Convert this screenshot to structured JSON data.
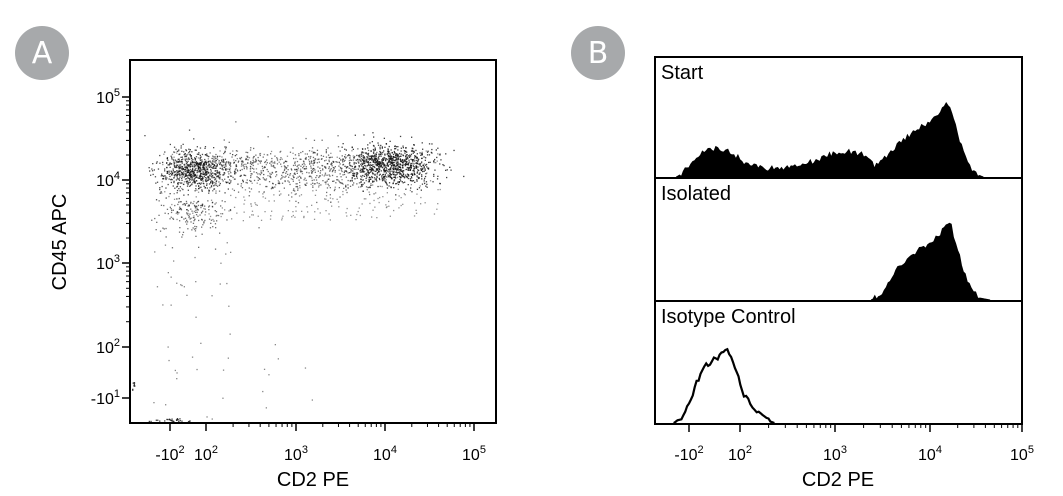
{
  "panels": [
    {
      "label": "A"
    },
    {
      "label": "B"
    }
  ],
  "chart_data": [
    {
      "type": "scatter",
      "panel": "A",
      "xlabel": "CD2 PE",
      "ylabel": "CD45 APC",
      "x_ticks": [
        {
          "v": -100,
          "lbl": "-10",
          "sup": "2"
        },
        {
          "v": 100,
          "lbl": "10",
          "sup": "2"
        },
        {
          "v": 1000,
          "lbl": "10",
          "sup": "3"
        },
        {
          "v": 10000,
          "lbl": "10",
          "sup": "4"
        },
        {
          "v": 100000,
          "lbl": "10",
          "sup": "5"
        }
      ],
      "y_ticks": [
        {
          "v": -10,
          "lbl": "-10",
          "sup": "1"
        },
        {
          "v": 100,
          "lbl": "10",
          "sup": "2"
        },
        {
          "v": 1000,
          "lbl": "10",
          "sup": "3"
        },
        {
          "v": 10000,
          "lbl": "10",
          "sup": "4"
        },
        {
          "v": 100000,
          "lbl": "10",
          "sup": "5"
        }
      ],
      "x_scale": "logicle",
      "y_scale": "logicle",
      "grid": false,
      "populations": [
        {
          "x_center": 50,
          "y_center": 12000,
          "density": "high"
        },
        {
          "x_center": 1200,
          "y_center": 11000,
          "density": "medium"
        },
        {
          "x_center": 12000,
          "y_center": 13000,
          "density": "high"
        }
      ]
    },
    {
      "type": "area",
      "panel": "B",
      "xlabel": "CD2 PE",
      "x_ticks": [
        {
          "v": -100,
          "lbl": "-10",
          "sup": "2"
        },
        {
          "v": 100,
          "lbl": "10",
          "sup": "2"
        },
        {
          "v": 1000,
          "lbl": "10",
          "sup": "3"
        },
        {
          "v": 10000,
          "lbl": "10",
          "sup": "4"
        },
        {
          "v": 100000,
          "lbl": "10",
          "sup": "5"
        }
      ],
      "x_scale": "logicle",
      "series": [
        {
          "name": "Start",
          "style": "filled",
          "points": [
            [
              -150,
              0
            ],
            [
              -130,
              0.03
            ],
            [
              -100,
              0.12
            ],
            [
              -70,
              0.22
            ],
            [
              -40,
              0.28
            ],
            [
              -10,
              0.3
            ],
            [
              20,
              0.3
            ],
            [
              60,
              0.27
            ],
            [
              110,
              0.16
            ],
            [
              180,
              0.09
            ],
            [
              300,
              0.1
            ],
            [
              500,
              0.14
            ],
            [
              800,
              0.22
            ],
            [
              1000,
              0.25
            ],
            [
              1400,
              0.27
            ],
            [
              1900,
              0.24
            ],
            [
              2600,
              0.12
            ],
            [
              3500,
              0.22
            ],
            [
              5000,
              0.38
            ],
            [
              7000,
              0.5
            ],
            [
              10000,
              0.58
            ],
            [
              13000,
              0.72
            ],
            [
              15000,
              0.82
            ],
            [
              18000,
              0.62
            ],
            [
              23000,
              0.25
            ],
            [
              30000,
              0.04
            ],
            [
              38000,
              0
            ]
          ]
        },
        {
          "name": "Isolated",
          "style": "filled",
          "points": [
            [
              2400,
              0
            ],
            [
              3000,
              0.05
            ],
            [
              4000,
              0.25
            ],
            [
              5500,
              0.42
            ],
            [
              7000,
              0.5
            ],
            [
              9000,
              0.56
            ],
            [
              11000,
              0.62
            ],
            [
              13000,
              0.7
            ],
            [
              15000,
              0.8
            ],
            [
              17000,
              0.78
            ],
            [
              19000,
              0.58
            ],
            [
              23000,
              0.32
            ],
            [
              28000,
              0.1
            ],
            [
              35000,
              0.02
            ],
            [
              45000,
              0
            ]
          ]
        },
        {
          "name": "Isotype Control",
          "style": "outline",
          "points": [
            [
              -160,
              0
            ],
            [
              -130,
              0.05
            ],
            [
              -100,
              0.2
            ],
            [
              -70,
              0.42
            ],
            [
              -40,
              0.58
            ],
            [
              -10,
              0.66
            ],
            [
              20,
              0.7
            ],
            [
              50,
              0.76
            ],
            [
              80,
              0.58
            ],
            [
              110,
              0.3
            ],
            [
              150,
              0.12
            ],
            [
              190,
              0.03
            ],
            [
              230,
              0
            ]
          ]
        }
      ]
    }
  ]
}
